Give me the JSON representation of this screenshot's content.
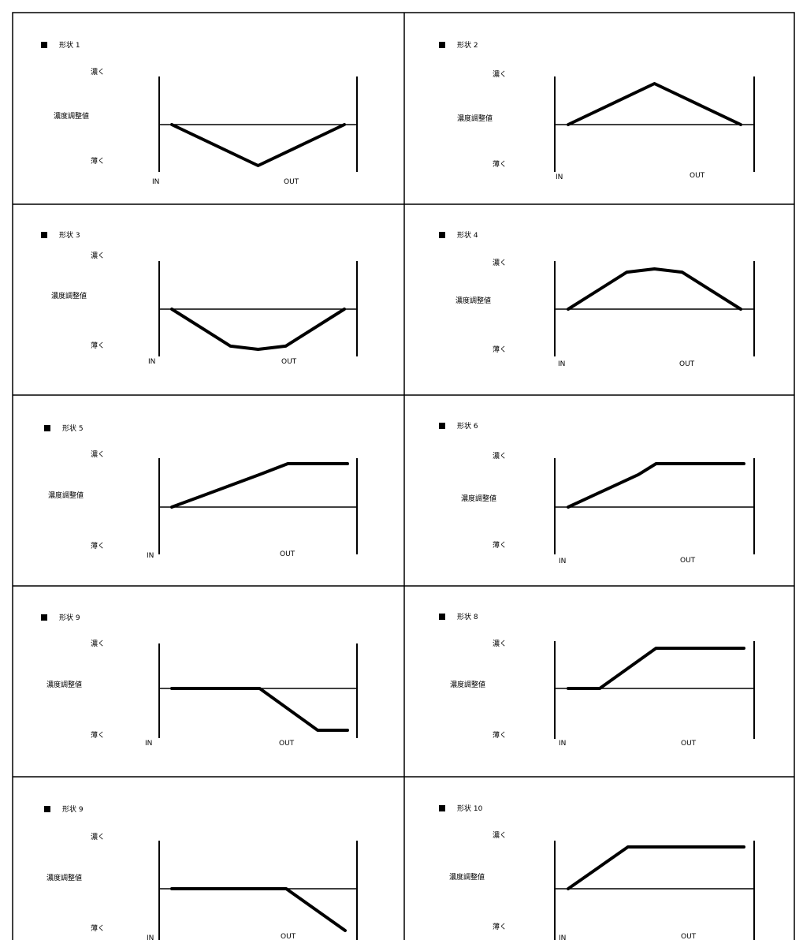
{
  "panel_labels": {
    "dark": "濃く",
    "light": "薄く",
    "ylabel": "濃度調整値",
    "in": "IN",
    "out": "OUT"
  },
  "chart_data": [
    {
      "type": "line",
      "title": "形状 1",
      "xlabel": [
        "IN",
        "OUT"
      ],
      "ylabel": "濃度調整値",
      "y_range": [
        "薄く",
        "濃く"
      ],
      "series": [
        {
          "x": [
            0,
            0.5,
            1
          ],
          "y": [
            0,
            -1,
            0
          ]
        }
      ]
    },
    {
      "type": "line",
      "title": "形状 2",
      "xlabel": [
        "IN",
        "OUT"
      ],
      "ylabel": "濃度調整値",
      "y_range": [
        "薄く",
        "濃く"
      ],
      "series": [
        {
          "x": [
            0,
            0.5,
            1
          ],
          "y": [
            0,
            1,
            0
          ]
        }
      ]
    },
    {
      "type": "line",
      "title": "形状 3",
      "xlabel": [
        "IN",
        "OUT"
      ],
      "ylabel": "濃度調整値",
      "y_range": [
        "薄く",
        "濃く"
      ],
      "series": [
        {
          "x": [
            0,
            0.34,
            0.5,
            0.66,
            1
          ],
          "y": [
            0,
            -0.92,
            -1,
            -0.92,
            0
          ]
        }
      ]
    },
    {
      "type": "line",
      "title": "形状 4",
      "xlabel": [
        "IN",
        "OUT"
      ],
      "ylabel": "濃度調整値",
      "y_range": [
        "薄く",
        "濃く"
      ],
      "series": [
        {
          "x": [
            0,
            0.34,
            0.5,
            0.66,
            1
          ],
          "y": [
            0,
            0.92,
            1,
            0.92,
            0
          ]
        }
      ]
    },
    {
      "type": "line",
      "title": "形状 5",
      "xlabel": [
        "IN",
        "OUT"
      ],
      "ylabel": "濃度調整値",
      "y_range": [
        "薄く",
        "濃く"
      ],
      "series": [
        {
          "x": [
            0,
            0.5,
            0.66,
            1
          ],
          "y": [
            0,
            0.75,
            1,
            1
          ]
        }
      ]
    },
    {
      "type": "line",
      "title": "形状 6",
      "xlabel": [
        "IN",
        "OUT"
      ],
      "ylabel": "濃度調整値",
      "y_range": [
        "薄く",
        "濃く"
      ],
      "series": [
        {
          "x": [
            0,
            0.4,
            0.5,
            1
          ],
          "y": [
            0,
            0.75,
            1,
            1
          ]
        }
      ]
    },
    {
      "type": "line",
      "title": "形状 9",
      "xlabel": [
        "IN",
        "OUT"
      ],
      "ylabel": "濃度調整値",
      "y_range": [
        "薄く",
        "濃く"
      ],
      "series": [
        {
          "x": [
            0,
            0.5,
            0.83,
            1
          ],
          "y": [
            0,
            0,
            -1,
            -1
          ]
        }
      ]
    },
    {
      "type": "line",
      "title": "形状 8",
      "xlabel": [
        "IN",
        "OUT"
      ],
      "ylabel": "濃度調整値",
      "y_range": [
        "薄く",
        "濃く"
      ],
      "series": [
        {
          "x": [
            0,
            0.18,
            0.5,
            1
          ],
          "y": [
            0,
            0,
            1,
            1
          ]
        }
      ]
    },
    {
      "type": "line",
      "title": "形状 9",
      "xlabel": [
        "IN",
        "OUT"
      ],
      "ylabel": "濃度調整値",
      "y_range": [
        "薄く",
        "濃く"
      ],
      "series": [
        {
          "x": [
            0,
            0.66,
            1
          ],
          "y": [
            0,
            0,
            -1
          ]
        }
      ]
    },
    {
      "type": "line",
      "title": "形状 10",
      "xlabel": [
        "IN",
        "OUT"
      ],
      "ylabel": "濃度調整値",
      "y_range": [
        "薄く",
        "濃く"
      ],
      "series": [
        {
          "x": [
            0,
            0.34,
            1
          ],
          "y": [
            0,
            1,
            1
          ]
        }
      ]
    }
  ]
}
